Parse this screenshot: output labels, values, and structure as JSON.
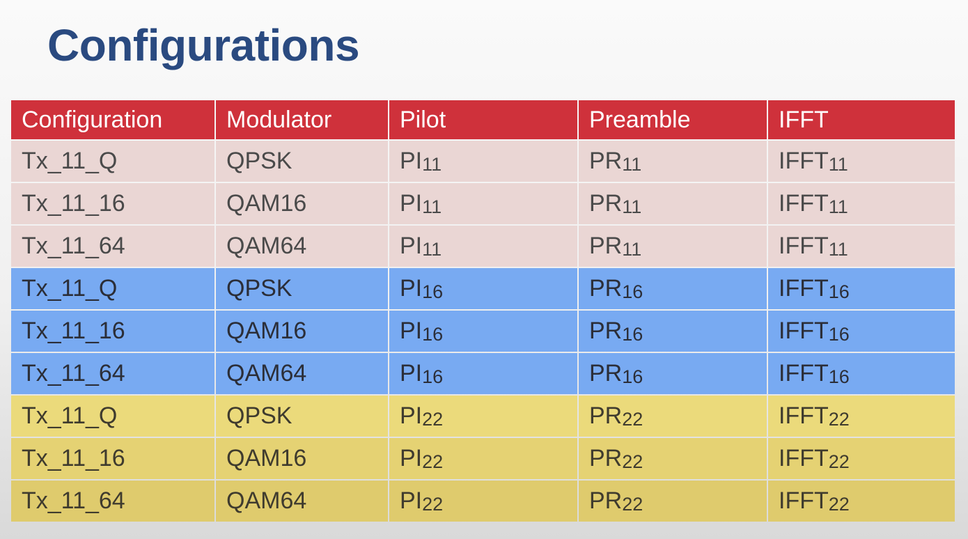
{
  "slide": {
    "title": "Configurations"
  },
  "table": {
    "headers": [
      "Configuration",
      "Modulator",
      "Pilot",
      "Preamble",
      "IFFT"
    ],
    "rows": [
      {
        "configuration": "Tx_11_Q",
        "modulator": "QPSK",
        "pilot": "PI",
        "pilot_sub": "11",
        "preamble": "PR",
        "preamble_sub": "11",
        "ifft": "IFFT",
        "ifft_sub": "11"
      },
      {
        "configuration": "Tx_11_16",
        "modulator": "QAM16",
        "pilot": "PI",
        "pilot_sub": "11",
        "preamble": "PR",
        "preamble_sub": "11",
        "ifft": "IFFT",
        "ifft_sub": "11"
      },
      {
        "configuration": "Tx_11_64",
        "modulator": "QAM64",
        "pilot": "PI",
        "pilot_sub": "11",
        "preamble": "PR",
        "preamble_sub": "11",
        "ifft": "IFFT",
        "ifft_sub": "11"
      },
      {
        "configuration": "Tx_11_Q",
        "modulator": "QPSK",
        "pilot": "PI",
        "pilot_sub": "16",
        "preamble": "PR",
        "preamble_sub": "16",
        "ifft": "IFFT",
        "ifft_sub": "16"
      },
      {
        "configuration": "Tx_11_16",
        "modulator": "QAM16",
        "pilot": "PI",
        "pilot_sub": "16",
        "preamble": "PR",
        "preamble_sub": "16",
        "ifft": "IFFT",
        "ifft_sub": "16"
      },
      {
        "configuration": "Tx_11_64",
        "modulator": "QAM64",
        "pilot": "PI",
        "pilot_sub": "16",
        "preamble": "PR",
        "preamble_sub": "16",
        "ifft": "IFFT",
        "ifft_sub": "16"
      },
      {
        "configuration": "Tx_11_Q",
        "modulator": "QPSK",
        "pilot": "PI",
        "pilot_sub": "22",
        "preamble": "PR",
        "preamble_sub": "22",
        "ifft": "IFFT",
        "ifft_sub": "22"
      },
      {
        "configuration": "Tx_11_16",
        "modulator": "QAM16",
        "pilot": "PI",
        "pilot_sub": "22",
        "preamble": "PR",
        "preamble_sub": "22",
        "ifft": "IFFT",
        "ifft_sub": "22"
      },
      {
        "configuration": "Tx_11_64",
        "modulator": "QAM64",
        "pilot": "PI",
        "pilot_sub": "22",
        "preamble": "PR",
        "preamble_sub": "22",
        "ifft": "IFFT",
        "ifft_sub": "22"
      }
    ]
  },
  "colors": {
    "title": "#2a4a80",
    "header_bg": "#cf313b",
    "group_11_bg": "#ead6d4",
    "group_16_bg": "#78aaf2",
    "group_22_bg": "#ebda7b"
  }
}
